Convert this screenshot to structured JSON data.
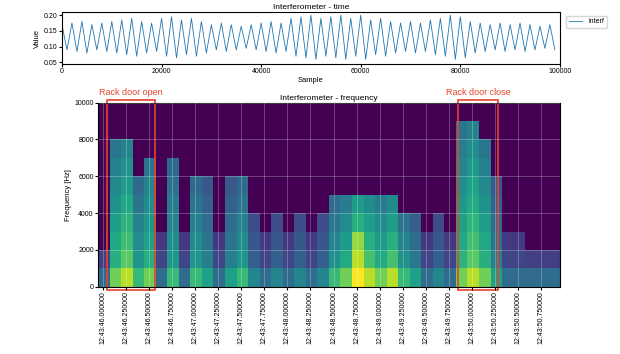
{
  "chart_data": [
    {
      "type": "line",
      "title": "Interferometer - time",
      "x_label": "Sample",
      "y_label": "Value",
      "x": [
        0,
        1000,
        2000,
        3000,
        4000,
        5000,
        6000,
        7000,
        8000,
        9000,
        10000,
        11000,
        12000,
        13000,
        14000,
        15000,
        16000,
        17000,
        18000,
        19000,
        20000,
        21000,
        22000,
        23000,
        24000,
        25000,
        26000,
        27000,
        28000,
        29000,
        30000,
        31000,
        32000,
        33000,
        34000,
        35000,
        36000,
        37000,
        38000,
        39000,
        40000,
        41000,
        42000,
        43000,
        44000,
        45000,
        46000,
        47000,
        48000,
        49000,
        50000,
        51000,
        52000,
        53000,
        54000,
        55000,
        56000,
        57000,
        58000,
        59000,
        60000,
        61000,
        62000,
        63000,
        64000,
        65000,
        66000,
        67000,
        68000,
        69000,
        70000,
        71000,
        72000,
        73000,
        74000,
        75000,
        76000,
        77000,
        78000,
        79000,
        80000,
        81000,
        82000,
        83000,
        84000,
        85000,
        86000,
        87000,
        88000,
        89000,
        90000,
        91000,
        92000,
        93000,
        94000,
        95000,
        96000,
        97000,
        98000,
        99000
      ],
      "series": [
        {
          "name": "interf",
          "color": "#1f77b4",
          "values": [
            0.17,
            0.09,
            0.175,
            0.085,
            0.18,
            0.08,
            0.17,
            0.09,
            0.175,
            0.085,
            0.18,
            0.08,
            0.185,
            0.075,
            0.19,
            0.07,
            0.18,
            0.08,
            0.175,
            0.085,
            0.19,
            0.07,
            0.195,
            0.065,
            0.185,
            0.075,
            0.19,
            0.07,
            0.18,
            0.08,
            0.17,
            0.09,
            0.175,
            0.085,
            0.17,
            0.09,
            0.165,
            0.095,
            0.17,
            0.09,
            0.175,
            0.085,
            0.18,
            0.08,
            0.175,
            0.085,
            0.19,
            0.07,
            0.195,
            0.065,
            0.2,
            0.06,
            0.19,
            0.07,
            0.195,
            0.065,
            0.2,
            0.06,
            0.19,
            0.07,
            0.2,
            0.06,
            0.185,
            0.075,
            0.19,
            0.07,
            0.18,
            0.08,
            0.175,
            0.085,
            0.18,
            0.08,
            0.175,
            0.085,
            0.185,
            0.075,
            0.19,
            0.07,
            0.2,
            0.06,
            0.195,
            0.065,
            0.18,
            0.08,
            0.175,
            0.085,
            0.17,
            0.09,
            0.175,
            0.085,
            0.17,
            0.09,
            0.175,
            0.085,
            0.17,
            0.09,
            0.165,
            0.095,
            0.17,
            0.09
          ]
        }
      ],
      "xlim": [
        0,
        100000
      ],
      "xticks": [
        0,
        20000,
        40000,
        60000,
        80000,
        100000
      ],
      "ylim": [
        0.045,
        0.21
      ],
      "yticks": [
        0.05,
        {
          "value": 0.1,
          "label": "0.10"
        },
        0.15,
        {
          "value": 0.2,
          "label": "0.20"
        }
      ],
      "legend": "upper left",
      "grid": false
    },
    {
      "type": "heatmap",
      "title": "Interferometer - frequency",
      "y_label": "Frequency [Hz]",
      "x": [
        45.95,
        46.075,
        46.2,
        46.325,
        46.45,
        46.575,
        46.7,
        46.825,
        46.95,
        47.075,
        47.2,
        47.325,
        47.45,
        47.575,
        47.7,
        47.825,
        47.95,
        48.075,
        48.2,
        48.325,
        48.45,
        48.575,
        48.7,
        48.825,
        48.95,
        49.075,
        49.2,
        49.325,
        49.45,
        49.575,
        49.7,
        49.825,
        49.95,
        50.075,
        50.2,
        50.325,
        50.45,
        50.575,
        50.7,
        50.825,
        50.95
      ],
      "y": [
        0,
        1000,
        2000,
        3000,
        4000,
        5000,
        6000,
        7000,
        8000,
        9000,
        10000
      ],
      "cells": [
        [
          0.4,
          0.25,
          0.08,
          0.08,
          0.08,
          0.08,
          0.08,
          0.08,
          0.08,
          0.08
        ],
        [
          0.8,
          0.66,
          0.63,
          0.59,
          0.55,
          0.51,
          0.48,
          0.44,
          0.08,
          0.08
        ],
        [
          0.9,
          0.76,
          0.71,
          0.67,
          0.63,
          0.58,
          0.54,
          0.49,
          0.08,
          0.08
        ],
        [
          0.7,
          0.56,
          0.52,
          0.48,
          0.43,
          0.39,
          0.08,
          0.08,
          0.08,
          0.08
        ],
        [
          0.8,
          0.66,
          0.61,
          0.57,
          0.53,
          0.49,
          0.44,
          0.08,
          0.08,
          0.08
        ],
        [
          0.4,
          0.27,
          0.23,
          0.08,
          0.08,
          0.08,
          0.08,
          0.08,
          0.08,
          0.08
        ],
        [
          0.7,
          0.56,
          0.53,
          0.49,
          0.46,
          0.42,
          0.39,
          0.08,
          0.08,
          0.08
        ],
        [
          0.4,
          0.27,
          0.23,
          0.08,
          0.08,
          0.08,
          0.08,
          0.08,
          0.08,
          0.08
        ],
        [
          0.7,
          0.56,
          0.52,
          0.48,
          0.43,
          0.39,
          0.08,
          0.08,
          0.08,
          0.08
        ],
        [
          0.6,
          0.47,
          0.43,
          0.4,
          0.37,
          0.33,
          0.08,
          0.08,
          0.08,
          0.08
        ],
        [
          0.4,
          0.27,
          0.23,
          0.08,
          0.08,
          0.08,
          0.08,
          0.08,
          0.08,
          0.08
        ],
        [
          0.6,
          0.47,
          0.43,
          0.4,
          0.37,
          0.33,
          0.08,
          0.08,
          0.08,
          0.08
        ],
        [
          0.7,
          0.56,
          0.52,
          0.48,
          0.43,
          0.39,
          0.08,
          0.08,
          0.08,
          0.08
        ],
        [
          0.5,
          0.36,
          0.33,
          0.29,
          0.08,
          0.08,
          0.08,
          0.08,
          0.08,
          0.08
        ],
        [
          0.4,
          0.27,
          0.23,
          0.08,
          0.08,
          0.08,
          0.08,
          0.08,
          0.08,
          0.08
        ],
        [
          0.5,
          0.36,
          0.33,
          0.29,
          0.08,
          0.08,
          0.08,
          0.08,
          0.08,
          0.08
        ],
        [
          0.4,
          0.27,
          0.23,
          0.08,
          0.08,
          0.08,
          0.08,
          0.08,
          0.08,
          0.08
        ],
        [
          0.5,
          0.36,
          0.33,
          0.29,
          0.08,
          0.08,
          0.08,
          0.08,
          0.08,
          0.08
        ],
        [
          0.4,
          0.27,
          0.23,
          0.08,
          0.08,
          0.08,
          0.08,
          0.08,
          0.08,
          0.08
        ],
        [
          0.5,
          0.36,
          0.33,
          0.29,
          0.08,
          0.08,
          0.08,
          0.08,
          0.08,
          0.08
        ],
        [
          0.7,
          0.55,
          0.5,
          0.45,
          0.4,
          0.08,
          0.08,
          0.08,
          0.08,
          0.08
        ],
        [
          0.8,
          0.64,
          0.58,
          0.52,
          0.46,
          0.08,
          0.08,
          0.08,
          0.08,
          0.08
        ],
        [
          1.0,
          0.9,
          0.85,
          0.66,
          0.58,
          0.08,
          0.08,
          0.08,
          0.08,
          0.08
        ],
        [
          0.9,
          0.73,
          0.66,
          0.59,
          0.52,
          0.08,
          0.08,
          0.08,
          0.08,
          0.08
        ],
        [
          0.8,
          0.64,
          0.58,
          0.52,
          0.46,
          0.08,
          0.08,
          0.08,
          0.08,
          0.08
        ],
        [
          0.9,
          0.73,
          0.66,
          0.59,
          0.52,
          0.08,
          0.08,
          0.08,
          0.08,
          0.08
        ],
        [
          0.7,
          0.54,
          0.49,
          0.43,
          0.08,
          0.08,
          0.08,
          0.08,
          0.08,
          0.08
        ],
        [
          0.6,
          0.45,
          0.4,
          0.35,
          0.08,
          0.08,
          0.08,
          0.08,
          0.08,
          0.08
        ],
        [
          0.4,
          0.27,
          0.23,
          0.08,
          0.08,
          0.08,
          0.08,
          0.08,
          0.08,
          0.08
        ],
        [
          0.5,
          0.36,
          0.33,
          0.29,
          0.08,
          0.08,
          0.08,
          0.08,
          0.08,
          0.08
        ],
        [
          0.4,
          0.27,
          0.23,
          0.08,
          0.08,
          0.08,
          0.08,
          0.08,
          0.08,
          0.08
        ],
        [
          0.8,
          0.67,
          0.63,
          0.6,
          0.57,
          0.53,
          0.5,
          0.47,
          0.43,
          0.08
        ],
        [
          0.9,
          0.76,
          0.72,
          0.68,
          0.64,
          0.61,
          0.57,
          0.53,
          0.49,
          0.08
        ],
        [
          0.8,
          0.66,
          0.63,
          0.59,
          0.55,
          0.51,
          0.48,
          0.44,
          0.08,
          0.08
        ],
        [
          0.6,
          0.47,
          0.43,
          0.4,
          0.37,
          0.33,
          0.08,
          0.08,
          0.08,
          0.08
        ],
        [
          0.4,
          0.27,
          0.23,
          0.08,
          0.08,
          0.08,
          0.08,
          0.08,
          0.08,
          0.08
        ],
        [
          0.4,
          0.27,
          0.23,
          0.08,
          0.08,
          0.08,
          0.08,
          0.08,
          0.08,
          0.08
        ],
        [
          0.4,
          0.25,
          0.08,
          0.08,
          0.08,
          0.08,
          0.08,
          0.08,
          0.08,
          0.08
        ],
        [
          0.4,
          0.25,
          0.08,
          0.08,
          0.08,
          0.08,
          0.08,
          0.08,
          0.08,
          0.08
        ],
        [
          0.4,
          0.25,
          0.08,
          0.08,
          0.08,
          0.08,
          0.08,
          0.08,
          0.08,
          0.08
        ]
      ],
      "xlim": [
        45.95,
        50.95
      ],
      "xticks": [
        {
          "value": 46.0,
          "label": "12:43:46.000000"
        },
        {
          "value": 46.25,
          "label": "12:43:46.250000"
        },
        {
          "value": 46.5,
          "label": "12:43:46.500000"
        },
        {
          "value": 46.75,
          "label": "12:43:46.750000"
        },
        {
          "value": 47.0,
          "label": "12:43:47.000000"
        },
        {
          "value": 47.25,
          "label": "12:43:47.250000"
        },
        {
          "value": 47.5,
          "label": "12:43:47.500000"
        },
        {
          "value": 47.75,
          "label": "12:43:47.750000"
        },
        {
          "value": 48.0,
          "label": "12:43:48.000000"
        },
        {
          "value": 48.25,
          "label": "12:43:48.250000"
        },
        {
          "value": 48.5,
          "label": "12:43:48.500000"
        },
        {
          "value": 48.75,
          "label": "12:43:48.750000"
        },
        {
          "value": 49.0,
          "label": "12:43:49.000000"
        },
        {
          "value": 49.25,
          "label": "12:43:49.250000"
        },
        {
          "value": 49.5,
          "label": "12:43:49.500000"
        },
        {
          "value": 49.75,
          "label": "12:43:49.750000"
        },
        {
          "value": 50.0,
          "label": "12:43:50.000000"
        },
        {
          "value": 50.25,
          "label": "12:43:50.250000"
        },
        {
          "value": 50.5,
          "label": "12:43:50.500000"
        },
        {
          "value": 50.75,
          "label": "12:43:50.750000"
        }
      ],
      "ylim": [
        0,
        10000
      ],
      "yticks": [
        0,
        2000,
        4000,
        6000,
        8000,
        10000
      ],
      "grid": true,
      "annotations": [
        {
          "text": "Rack door open",
          "x": [
            46.05,
            46.57
          ],
          "color": "#e8412a"
        },
        {
          "text": "Rack door close",
          "x": [
            49.85,
            50.28
          ],
          "color": "#e8412a"
        }
      ]
    }
  ]
}
